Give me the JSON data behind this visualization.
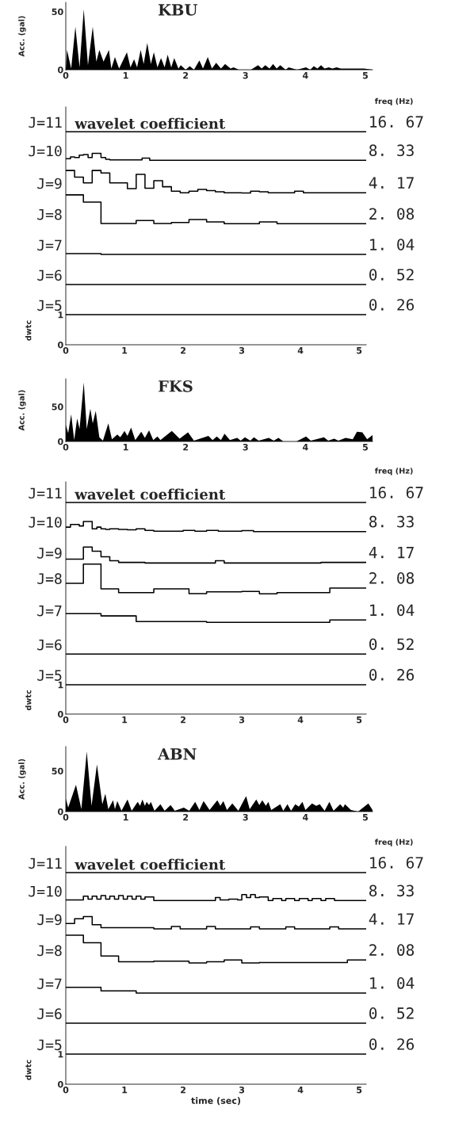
{
  "chart_data": [
    {
      "type": "area",
      "title": "KBU",
      "xlabel": "freq (Hz)",
      "ylabel": "Acc. (gal)",
      "xlim": [
        0,
        5.12
      ],
      "ylim": [
        0,
        58
      ],
      "xticks": [
        0,
        1,
        2,
        3,
        4,
        5
      ],
      "yticks": [
        0,
        50
      ],
      "x": [
        0,
        0.02,
        0.09,
        0.16,
        0.23,
        0.3,
        0.37,
        0.45,
        0.51,
        0.56,
        0.63,
        0.72,
        0.76,
        0.82,
        0.89,
        1.02,
        1.08,
        1.14,
        1.19,
        1.25,
        1.3,
        1.36,
        1.42,
        1.47,
        1.53,
        1.59,
        1.65,
        1.7,
        1.76,
        1.81,
        1.88,
        1.92,
        2.0,
        2.07,
        2.14,
        2.23,
        2.29,
        2.37,
        2.44,
        2.51,
        2.59,
        2.66,
        2.75,
        2.8,
        2.89,
        3.09,
        3.21,
        3.27,
        3.33,
        3.4,
        3.46,
        3.52,
        3.58,
        3.67,
        3.72,
        3.86,
        4.01,
        4.08,
        4.14,
        4.2,
        4.26,
        4.32,
        4.39,
        4.45,
        4.52,
        4.59,
        4.66,
        4.98,
        5.12
      ],
      "series": [
        {
          "color": "#000000",
          "values": [
            0,
            17,
            1,
            37,
            2,
            52,
            4,
            37,
            7,
            17,
            7,
            17,
            1,
            11,
            1,
            15,
            2,
            9,
            2,
            17,
            5,
            23,
            5,
            15,
            2,
            10,
            2,
            13,
            2,
            10,
            1,
            4,
            0,
            3,
            0,
            8,
            1,
            11,
            1,
            6,
            1,
            5,
            1,
            2,
            0,
            0,
            4,
            1,
            4,
            1,
            5,
            1,
            4,
            0,
            2,
            0,
            2,
            0,
            3,
            1,
            4,
            1,
            2,
            1,
            2,
            1,
            1,
            1,
            0
          ]
        }
      ]
    },
    {
      "type": "step",
      "title": "wavelet coefficient",
      "ylabel": "dwtc",
      "xlim": [
        0,
        5.12
      ],
      "ylim": [
        0,
        7.9
      ],
      "xticks": [
        0,
        1,
        2,
        3,
        4,
        5
      ],
      "yticks": [
        0,
        1
      ],
      "series": [
        {
          "name": "J=11",
          "color": "#000000",
          "x": [
            0,
            5.12
          ],
          "values": [
            7.08,
            7.08
          ]
        },
        {
          "name": "J=10",
          "color": "#000000",
          "x": [
            0,
            0.08,
            0.15,
            0.23,
            0.3,
            0.38,
            0.45,
            0.6,
            0.68,
            0.75,
            1.3,
            1.43,
            5.12
          ],
          "values": [
            6.18,
            6.24,
            6.22,
            6.3,
            6.32,
            6.22,
            6.36,
            6.22,
            6.16,
            6.14,
            6.2,
            6.13,
            6.13
          ]
        },
        {
          "name": "J=9",
          "color": "#000000",
          "x": [
            0,
            0.15,
            0.3,
            0.45,
            0.6,
            0.75,
            1.05,
            1.2,
            1.35,
            1.5,
            1.65,
            1.8,
            1.95,
            2.1,
            2.25,
            2.4,
            2.55,
            2.7,
            3.0,
            3.15,
            3.3,
            3.45,
            3.9,
            4.05,
            5.12
          ],
          "values": [
            5.79,
            5.57,
            5.38,
            5.79,
            5.71,
            5.38,
            5.19,
            5.66,
            5.2,
            5.45,
            5.25,
            5.1,
            5.05,
            5.1,
            5.16,
            5.12,
            5.08,
            5.05,
            5.04,
            5.1,
            5.08,
            5.05,
            5.1,
            5.05,
            5.05
          ]
        },
        {
          "name": "J=8",
          "color": "#000000",
          "x": [
            0,
            0.3,
            0.6,
            1.2,
            1.5,
            1.8,
            2.1,
            2.4,
            2.7,
            3.3,
            3.6,
            5.12
          ],
          "values": [
            4.98,
            4.74,
            4.03,
            4.13,
            4.03,
            4.06,
            4.16,
            4.08,
            4.02,
            4.08,
            4.02,
            4.02
          ]
        },
        {
          "name": "J=7",
          "color": "#000000",
          "x": [
            0,
            0.6,
            5.12
          ],
          "values": [
            3.03,
            3.0,
            3.0
          ]
        },
        {
          "name": "J=6",
          "color": "#000000",
          "x": [
            0,
            5.12
          ],
          "values": [
            2.0,
            2.0
          ]
        },
        {
          "name": "J=5",
          "color": "#000000",
          "x": [
            0,
            5.12
          ],
          "values": [
            1.0,
            1.0
          ]
        }
      ],
      "annotations": [
        "16. 67",
        "8. 33",
        "4. 17",
        "2. 08",
        "1. 04",
        "0. 52",
        "0. 26"
      ]
    },
    {
      "type": "area",
      "title": "FKS",
      "xlabel": "freq (Hz)",
      "ylabel": "Acc. (gal)",
      "xlim": [
        0,
        5.12
      ],
      "ylim": [
        0,
        90
      ],
      "xticks": [
        0,
        1,
        2,
        3,
        4,
        5
      ],
      "yticks": [
        0,
        50
      ],
      "x": [
        0,
        0.04,
        0.09,
        0.14,
        0.19,
        0.23,
        0.3,
        0.35,
        0.41,
        0.45,
        0.5,
        0.56,
        0.62,
        0.71,
        0.77,
        0.86,
        0.91,
        0.98,
        1.03,
        1.09,
        1.16,
        1.26,
        1.32,
        1.39,
        1.46,
        1.53,
        1.58,
        1.77,
        1.9,
        2.04,
        2.14,
        2.38,
        2.45,
        2.52,
        2.59,
        2.65,
        2.74,
        2.86,
        2.92,
        2.99,
        3.08,
        3.14,
        3.22,
        3.39,
        3.47,
        3.55,
        3.63,
        3.85,
        4.01,
        4.09,
        4.31,
        4.38,
        4.48,
        4.55,
        4.67,
        4.79,
        4.86,
        4.95,
        5.03,
        5.12
      ],
      "series": [
        {
          "color": "#000000",
          "values": [
            24,
            12,
            39,
            2,
            33,
            18,
            85,
            18,
            47,
            26,
            44,
            6,
            1,
            26,
            3,
            10,
            6,
            15,
            8,
            20,
            2,
            14,
            5,
            16,
            2,
            7,
            2,
            15,
            4,
            13,
            1,
            8,
            2,
            7,
            2,
            11,
            2,
            5,
            1,
            6,
            1,
            6,
            1,
            5,
            1,
            5,
            0,
            0,
            7,
            1,
            6,
            1,
            4,
            1,
            5,
            3,
            14,
            13,
            3,
            9
          ]
        }
      ]
    },
    {
      "type": "step",
      "title": "wavelet coefficient",
      "ylabel": "dwtc",
      "xlim": [
        0,
        5.12
      ],
      "ylim": [
        0,
        7.9
      ],
      "xticks": [
        0,
        1,
        2,
        3,
        4,
        5
      ],
      "yticks": [
        0,
        1
      ],
      "series": [
        {
          "name": "J=11",
          "color": "#000000",
          "x": [
            0,
            5.12
          ],
          "values": [
            7.2,
            7.2
          ]
        },
        {
          "name": "J=10",
          "color": "#000000",
          "x": [
            0,
            0.08,
            0.23,
            0.3,
            0.45,
            0.53,
            0.6,
            0.68,
            0.75,
            0.9,
            1.05,
            1.2,
            1.35,
            1.5,
            2.0,
            2.2,
            2.4,
            2.6,
            3.0,
            3.2,
            5.12
          ],
          "values": [
            6.36,
            6.45,
            6.4,
            6.55,
            6.3,
            6.36,
            6.3,
            6.28,
            6.3,
            6.28,
            6.27,
            6.3,
            6.25,
            6.22,
            6.25,
            6.22,
            6.25,
            6.22,
            6.24,
            6.21,
            6.21
          ]
        },
        {
          "name": "J=9",
          "color": "#000000",
          "x": [
            0,
            0.3,
            0.45,
            0.6,
            0.75,
            0.9,
            1.35,
            2.55,
            2.7,
            4.35,
            5.12
          ],
          "values": [
            5.27,
            5.68,
            5.54,
            5.35,
            5.22,
            5.16,
            5.14,
            5.22,
            5.14,
            5.16,
            5.16
          ]
        },
        {
          "name": "J=8",
          "color": "#000000",
          "x": [
            0,
            0.3,
            0.6,
            0.9,
            1.5,
            2.1,
            2.4,
            3.0,
            3.3,
            3.6,
            4.5,
            5.12
          ],
          "values": [
            4.45,
            5.1,
            4.26,
            4.13,
            4.26,
            4.1,
            4.16,
            4.17,
            4.09,
            4.13,
            4.29,
            4.29
          ]
        },
        {
          "name": "J=7",
          "color": "#000000",
          "x": [
            0,
            0.6,
            1.2,
            2.4,
            4.5,
            5.12
          ],
          "values": [
            3.42,
            3.34,
            3.15,
            3.12,
            3.2,
            3.2
          ]
        },
        {
          "name": "J=6",
          "color": "#000000",
          "x": [
            0,
            5.12
          ],
          "values": [
            2.04,
            2.04
          ]
        },
        {
          "name": "J=5",
          "color": "#000000",
          "x": [
            0,
            5.12
          ],
          "values": [
            1.0,
            1.0
          ]
        }
      ],
      "annotations": [
        "16. 67",
        "8. 33",
        "4. 17",
        "2. 08",
        "1. 04",
        "0. 52",
        "0. 26"
      ]
    },
    {
      "type": "area",
      "title": "ABN",
      "xlabel": "freq (Hz)",
      "ylabel": "Acc. (gal)",
      "xlim": [
        0,
        5.12
      ],
      "ylim": [
        0,
        80
      ],
      "xticks": [
        0,
        1,
        2,
        3,
        4,
        5
      ],
      "yticks": [
        0,
        50
      ],
      "x": [
        0,
        0.04,
        0.17,
        0.26,
        0.35,
        0.43,
        0.52,
        0.61,
        0.66,
        0.71,
        0.79,
        0.82,
        0.86,
        0.93,
        1.03,
        1.1,
        1.2,
        1.24,
        1.28,
        1.32,
        1.35,
        1.39,
        1.42,
        1.48,
        1.58,
        1.65,
        1.75,
        1.82,
        1.97,
        2.06,
        2.16,
        2.23,
        2.3,
        2.4,
        2.53,
        2.58,
        2.63,
        2.69,
        2.78,
        2.88,
        3.01,
        3.07,
        3.18,
        3.23,
        3.28,
        3.34,
        3.38,
        3.43,
        3.58,
        3.63,
        3.7,
        3.76,
        3.83,
        3.89,
        3.95,
        4.0,
        4.11,
        4.18,
        4.24,
        4.32,
        4.4,
        4.47,
        4.58,
        4.63,
        4.66,
        4.76,
        4.88,
        5.05,
        5.12
      ],
      "series": [
        {
          "color": "#000000",
          "values": [
            16,
            5,
            33,
            3,
            74,
            7,
            58,
            9,
            22,
            3,
            14,
            3,
            13,
            1,
            15,
            1,
            12,
            7,
            15,
            7,
            12,
            8,
            12,
            1,
            9,
            1,
            8,
            1,
            5,
            1,
            12,
            2,
            13,
            2,
            14,
            7,
            13,
            2,
            10,
            1,
            19,
            3,
            15,
            8,
            14,
            7,
            12,
            2,
            9,
            1,
            9,
            1,
            9,
            6,
            12,
            2,
            10,
            7,
            9,
            1,
            12,
            1,
            9,
            5,
            9,
            2,
            0,
            10,
            2
          ]
        }
      ]
    },
    {
      "type": "step",
      "title": "wavelet coefficient",
      "xlabel": "time (sec)",
      "ylabel": "dwtc",
      "xlim": [
        0,
        5.12
      ],
      "ylim": [
        0,
        7.9
      ],
      "xticks": [
        0,
        1,
        2,
        3,
        4,
        5
      ],
      "yticks": [
        0,
        1
      ],
      "series": [
        {
          "name": "J=11",
          "color": "#000000",
          "x": [
            0,
            5.12
          ],
          "values": [
            7.03,
            7.03
          ]
        },
        {
          "name": "J=10",
          "color": "#000000",
          "x": [
            0,
            0.3,
            0.38,
            0.45,
            0.53,
            0.6,
            0.68,
            0.75,
            0.83,
            0.9,
            0.98,
            1.05,
            1.13,
            1.2,
            1.28,
            1.35,
            1.5,
            2.55,
            2.63,
            2.78,
            2.93,
            3.0,
            3.08,
            3.15,
            3.23,
            3.3,
            3.45,
            3.53,
            3.68,
            3.75,
            3.9,
            3.98,
            4.13,
            4.2,
            4.35,
            4.43,
            4.58,
            5.12
          ],
          "values": [
            6.12,
            6.25,
            6.15,
            6.25,
            6.15,
            6.27,
            6.15,
            6.25,
            6.15,
            6.27,
            6.15,
            6.25,
            6.15,
            6.25,
            6.15,
            6.22,
            6.1,
            6.2,
            6.12,
            6.15,
            6.12,
            6.3,
            6.2,
            6.3,
            6.2,
            6.22,
            6.1,
            6.17,
            6.1,
            6.17,
            6.1,
            6.17,
            6.1,
            6.17,
            6.1,
            6.17,
            6.1,
            6.1
          ]
        },
        {
          "name": "J=9",
          "color": "#000000",
          "x": [
            0,
            0.15,
            0.3,
            0.45,
            0.6,
            1.5,
            1.8,
            1.95,
            2.4,
            2.55,
            3.15,
            3.3,
            3.75,
            3.9,
            4.5,
            4.65,
            5.12
          ],
          "values": [
            5.34,
            5.5,
            5.57,
            5.3,
            5.2,
            5.16,
            5.24,
            5.16,
            5.24,
            5.16,
            5.23,
            5.16,
            5.23,
            5.16,
            5.23,
            5.16,
            5.16
          ]
        },
        {
          "name": "J=8",
          "color": "#000000",
          "x": [
            0,
            0.3,
            0.6,
            0.9,
            1.5,
            2.1,
            2.4,
            2.7,
            3.0,
            3.3,
            4.8,
            5.12
          ],
          "values": [
            4.95,
            4.7,
            4.26,
            4.07,
            4.09,
            4.03,
            4.07,
            4.13,
            4.03,
            4.04,
            4.13,
            4.13
          ]
        },
        {
          "name": "J=7",
          "color": "#000000",
          "x": [
            0,
            0.6,
            1.2,
            5.12
          ],
          "values": [
            3.22,
            3.1,
            3.03,
            3.03
          ]
        },
        {
          "name": "J=6",
          "color": "#000000",
          "x": [
            0,
            5.12
          ],
          "values": [
            2.03,
            2.03
          ]
        },
        {
          "name": "J=5",
          "color": "#000000",
          "x": [
            0,
            5.12
          ],
          "values": [
            1.0,
            1.0
          ]
        }
      ],
      "annotations": [
        "16. 67",
        "8. 33",
        "4. 17",
        "2. 08",
        "1. 04",
        "0. 52",
        "0. 26"
      ]
    }
  ]
}
